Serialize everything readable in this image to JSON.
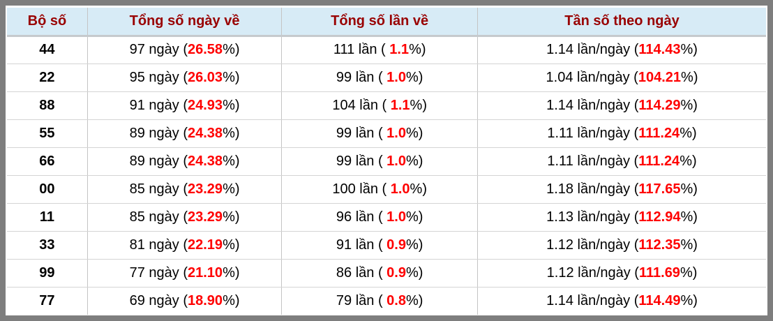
{
  "colors": {
    "frame_border": "#7e7e7e",
    "header_bg": "#d7ebf6",
    "header_text": "#990000",
    "highlight_red": "#ff0000",
    "body_text": "#000000",
    "grid_line": "#c4c4c4"
  },
  "table": {
    "columns": [
      {
        "label": "Bộ số"
      },
      {
        "label": "Tổng số ngày về"
      },
      {
        "label": "Tổng số lần về"
      },
      {
        "label": "Tần số theo ngày"
      }
    ],
    "rows": [
      {
        "pair": "44",
        "days": {
          "pre": "97 ngày (",
          "value": "26.58",
          "post": "%)"
        },
        "times": {
          "pre": "111 lần ( ",
          "value": "1.1",
          "post": "%)"
        },
        "freq": {
          "pre": "1.14 lần/ngày (",
          "value": "114.43",
          "post": "%)"
        }
      },
      {
        "pair": "22",
        "days": {
          "pre": "95 ngày (",
          "value": "26.03",
          "post": "%)"
        },
        "times": {
          "pre": "99 lần ( ",
          "value": "1.0",
          "post": "%)"
        },
        "freq": {
          "pre": "1.04 lần/ngày (",
          "value": "104.21",
          "post": "%)"
        }
      },
      {
        "pair": "88",
        "days": {
          "pre": "91 ngày (",
          "value": "24.93",
          "post": "%)"
        },
        "times": {
          "pre": "104 lần ( ",
          "value": "1.1",
          "post": "%)"
        },
        "freq": {
          "pre": "1.14 lần/ngày (",
          "value": "114.29",
          "post": "%)"
        }
      },
      {
        "pair": "55",
        "days": {
          "pre": "89 ngày (",
          "value": "24.38",
          "post": "%)"
        },
        "times": {
          "pre": "99 lần ( ",
          "value": "1.0",
          "post": "%)"
        },
        "freq": {
          "pre": "1.11 lần/ngày (",
          "value": "111.24",
          "post": "%)"
        }
      },
      {
        "pair": "66",
        "days": {
          "pre": "89 ngày (",
          "value": "24.38",
          "post": "%)"
        },
        "times": {
          "pre": "99 lần ( ",
          "value": "1.0",
          "post": "%)"
        },
        "freq": {
          "pre": "1.11 lần/ngày (",
          "value": "111.24",
          "post": "%)"
        }
      },
      {
        "pair": "00",
        "days": {
          "pre": "85 ngày (",
          "value": "23.29",
          "post": "%)"
        },
        "times": {
          "pre": "100 lần ( ",
          "value": "1.0",
          "post": "%)"
        },
        "freq": {
          "pre": "1.18 lần/ngày (",
          "value": "117.65",
          "post": "%)"
        }
      },
      {
        "pair": "11",
        "days": {
          "pre": "85 ngày (",
          "value": "23.29",
          "post": "%)"
        },
        "times": {
          "pre": "96 lần ( ",
          "value": "1.0",
          "post": "%)"
        },
        "freq": {
          "pre": "1.13 lần/ngày (",
          "value": "112.94",
          "post": "%)"
        }
      },
      {
        "pair": "33",
        "days": {
          "pre": "81 ngày (",
          "value": "22.19",
          "post": "%)"
        },
        "times": {
          "pre": "91 lần ( ",
          "value": "0.9",
          "post": "%)"
        },
        "freq": {
          "pre": "1.12 lần/ngày (",
          "value": "112.35",
          "post": "%)"
        }
      },
      {
        "pair": "99",
        "days": {
          "pre": "77 ngày (",
          "value": "21.10",
          "post": "%)"
        },
        "times": {
          "pre": "86 lần ( ",
          "value": "0.9",
          "post": "%)"
        },
        "freq": {
          "pre": "1.12 lần/ngày (",
          "value": "111.69",
          "post": "%)"
        }
      },
      {
        "pair": "77",
        "days": {
          "pre": "69 ngày (",
          "value": "18.90",
          "post": "%)"
        },
        "times": {
          "pre": "79 lần ( ",
          "value": "0.8",
          "post": "%)"
        },
        "freq": {
          "pre": "1.14 lần/ngày (",
          "value": "114.49",
          "post": "%)"
        }
      }
    ]
  }
}
